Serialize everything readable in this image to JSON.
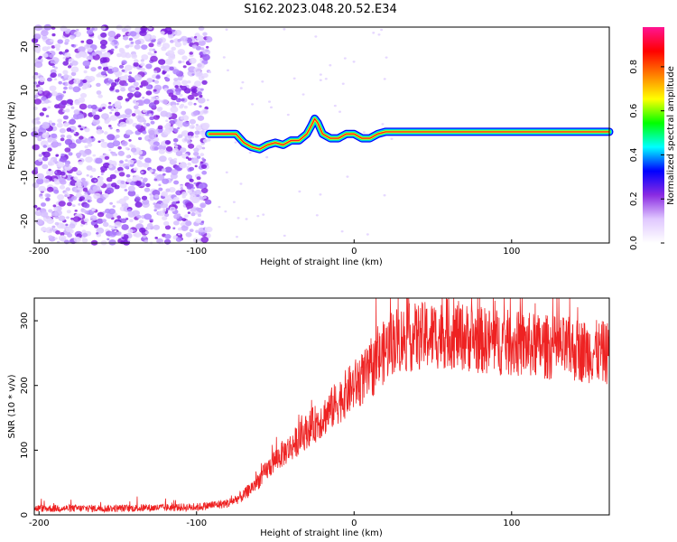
{
  "title": "S162.2023.048.20.52.E34",
  "chart_data": [
    {
      "type": "heatmap",
      "xlabel": "Height of straight line (km)",
      "ylabel": "Frequency (Hz)",
      "xlim": [
        -203,
        162
      ],
      "ylim": [
        -25,
        24.5
      ],
      "xticks": [
        -200,
        -100,
        0,
        100
      ],
      "yticks": [
        20,
        10,
        0,
        -10,
        -20
      ],
      "colorbar": {
        "label": "Normalized spectral amplitude",
        "range": [
          0,
          0.98
        ],
        "ticks": [
          "0.0",
          "0.2",
          "0.4",
          "0.6",
          "0.8"
        ],
        "ticks_values": [
          0.0,
          0.2,
          0.4,
          0.6,
          0.8
        ],
        "colormap": [
          "#ffffff",
          "#e0c8ff",
          "#8a2be2",
          "#0000ff",
          "#00ffff",
          "#00ff00",
          "#ffff00",
          "#ff8000",
          "#ff0000",
          "#ff1493"
        ]
      },
      "noise_region": {
        "x_start": -203,
        "x_end": -92
      },
      "ridge": {
        "x": [
          -92,
          -80,
          -75,
          -70,
          -65,
          -60,
          -55,
          -50,
          -45,
          -40,
          -35,
          -30,
          -27,
          -25,
          -23,
          -20,
          -15,
          -10,
          -5,
          0,
          5,
          10,
          15,
          20,
          40,
          60,
          80,
          100,
          120,
          140,
          162
        ],
        "y": [
          0,
          0,
          0,
          -2,
          -3,
          -3.5,
          -2.5,
          -2,
          -2.5,
          -1.5,
          -1.5,
          0,
          2,
          3.5,
          2.5,
          0,
          -1,
          -1,
          0,
          0,
          -1,
          -1,
          0,
          0.5,
          0.5,
          0.5,
          0.5,
          0.5,
          0.5,
          0.5,
          0.5
        ]
      }
    },
    {
      "type": "line",
      "xlabel": "Height of straight line (km)",
      "ylabel": "SNR (10 * v/v)",
      "xlim": [
        -203,
        162
      ],
      "ylim": [
        0,
        335
      ],
      "xticks": [
        -200,
        -100,
        0,
        100
      ],
      "yticks": [
        0,
        100,
        200,
        300
      ],
      "color": "#ee2222",
      "trend": {
        "x": [
          -203,
          -150,
          -100,
          -80,
          -70,
          -60,
          -50,
          -40,
          -30,
          -20,
          -10,
          0,
          10,
          20,
          25,
          40,
          60,
          80,
          100,
          120,
          140,
          162
        ],
        "y": [
          10,
          10,
          12,
          18,
          30,
          55,
          85,
          105,
          130,
          150,
          175,
          200,
          220,
          255,
          270,
          275,
          280,
          270,
          265,
          260,
          255,
          250
        ]
      }
    }
  ]
}
